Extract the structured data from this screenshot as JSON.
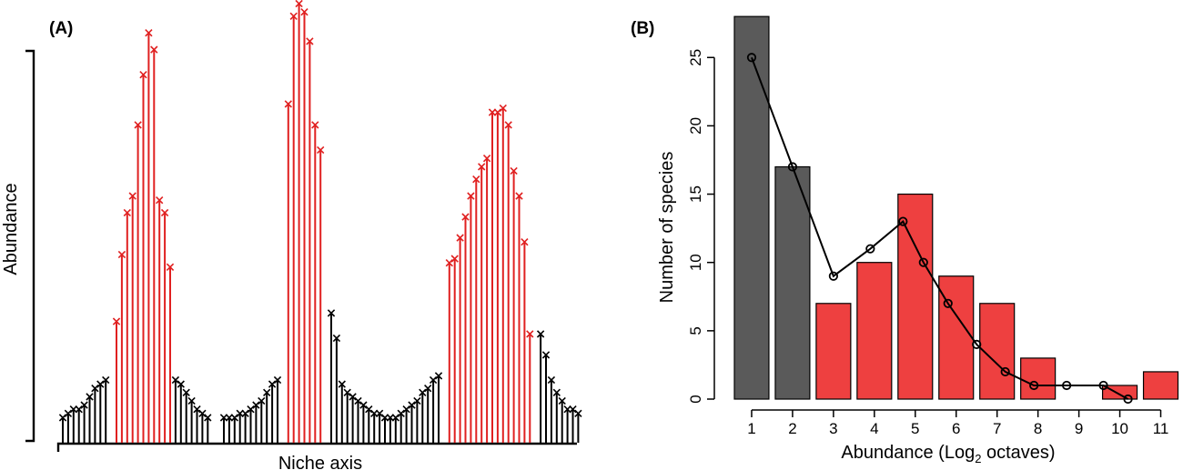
{
  "panel_a": {
    "label": "(A)",
    "xlabel": "Niche axis",
    "ylabel": "Abundance"
  },
  "panel_b": {
    "label": "(B)",
    "xlabel": "Abundance (Log",
    "xlabel_sub": "2",
    "xlabel_end": " octaves)",
    "ylabel": "Number of species"
  },
  "colors": {
    "grey": "#5a5a5a",
    "red": "#ee4040",
    "black": "#000000",
    "red_line": "#e02020"
  },
  "chart_data": [
    {
      "panel": "A",
      "type": "bar",
      "title": "",
      "xlabel": "Niche axis",
      "ylabel": "Abundance",
      "note": "stem plot: vertical lines ending in x markers; red = species within niche clusters, black = others",
      "ylim": [
        0,
        100
      ],
      "values": [
        6,
        7,
        8,
        8,
        9,
        11,
        13,
        14,
        15,
        0,
        29,
        45,
        55,
        59,
        76,
        88,
        98,
        94,
        58,
        55,
        42,
        15,
        14,
        12,
        10,
        8,
        7,
        6,
        0,
        0,
        6,
        6,
        6,
        7,
        7,
        8,
        9,
        10,
        12,
        14,
        15,
        0,
        81,
        102,
        105,
        103,
        96,
        76,
        70,
        0,
        31,
        25,
        14,
        12,
        11,
        10,
        9,
        8,
        7,
        7,
        6,
        6,
        6,
        7,
        8,
        9,
        10,
        12,
        13,
        15,
        16,
        0,
        43,
        44,
        49,
        54,
        59,
        63,
        66,
        68,
        79,
        79,
        80,
        76,
        65,
        59,
        48,
        26,
        0,
        26,
        21,
        15,
        12,
        10,
        8,
        8,
        7
      ],
      "colors": [
        "black",
        "black",
        "black",
        "black",
        "black",
        "black",
        "black",
        "black",
        "black",
        "none",
        "red",
        "red",
        "red",
        "red",
        "red",
        "red",
        "red",
        "red",
        "red",
        "red",
        "red",
        "black",
        "black",
        "black",
        "black",
        "black",
        "black",
        "black",
        "none",
        "none",
        "black",
        "black",
        "black",
        "black",
        "black",
        "black",
        "black",
        "black",
        "black",
        "black",
        "black",
        "none",
        "red",
        "red",
        "red",
        "red",
        "red",
        "red",
        "red",
        "none",
        "black",
        "black",
        "black",
        "black",
        "black",
        "black",
        "black",
        "black",
        "black",
        "black",
        "black",
        "black",
        "black",
        "black",
        "black",
        "black",
        "black",
        "black",
        "black",
        "black",
        "black",
        "none",
        "red",
        "red",
        "red",
        "red",
        "red",
        "red",
        "red",
        "red",
        "red",
        "red",
        "red",
        "red",
        "red",
        "red",
        "red",
        "red",
        "none",
        "black",
        "black",
        "black",
        "black",
        "black",
        "black",
        "black",
        "black"
      ]
    },
    {
      "panel": "B",
      "type": "bar",
      "title": "",
      "xlabel": "Abundance (Log2 octaves)",
      "ylabel": "Number of species",
      "categories": [
        "1",
        "2",
        "3",
        "4",
        "5",
        "6",
        "7",
        "8",
        "9",
        "10",
        "11"
      ],
      "ylim": [
        0,
        28
      ],
      "yticks": [
        0,
        5,
        10,
        15,
        20,
        25
      ],
      "series": [
        {
          "type": "bar",
          "values": [
            28,
            17,
            7,
            10,
            15,
            9,
            7,
            3,
            0,
            1,
            2
          ],
          "colors": [
            "grey",
            "grey",
            "red",
            "red",
            "red",
            "red",
            "red",
            "red",
            "red",
            "red",
            "red"
          ]
        },
        {
          "type": "line",
          "x": [
            1,
            2,
            3,
            3.9,
            4.7,
            5.2,
            5.8,
            6.5,
            7.2,
            7.9,
            8.7,
            9.6,
            10.2
          ],
          "values": [
            25,
            17,
            9,
            11,
            13,
            10,
            7,
            4,
            2,
            1,
            1,
            1,
            0
          ]
        }
      ]
    }
  ]
}
